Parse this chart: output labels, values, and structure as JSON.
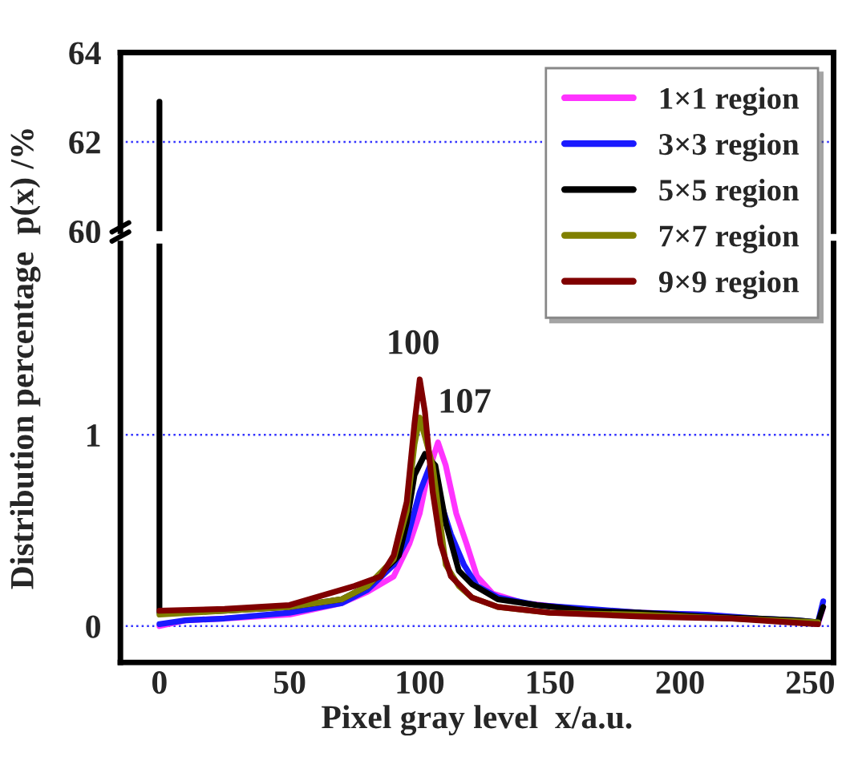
{
  "chart_data": [
    {
      "type": "line",
      "xlim": [
        -15,
        259
      ],
      "ylim": [
        60,
        64
      ],
      "yticks": [
        60,
        62,
        64
      ],
      "tick_labels": "y",
      "ref_lines": [
        {
          "axis": "y",
          "value": 62,
          "color": "#3333ff",
          "line_style": "dotted"
        }
      ],
      "series": [
        {
          "color": "#000000",
          "x": [
            0,
            0
          ],
          "values": [
            62.9,
            60
          ]
        }
      ]
    },
    {
      "type": "line",
      "xlabel": "Pixel gray level  x/a.u.",
      "ylabel": "Distribution percentage  p(x) /%",
      "xlim": [
        -15,
        259
      ],
      "ylim": [
        -0.19,
        2.0
      ],
      "xticks": [
        0,
        50,
        100,
        150,
        200,
        250
      ],
      "yticks": [
        0,
        1
      ],
      "ref_lines": [
        {
          "axis": "y",
          "value": 0,
          "color": "#3333ff",
          "line_style": "dotted"
        },
        {
          "axis": "y",
          "value": 1,
          "color": "#3333ff",
          "line_style": "dotted"
        }
      ],
      "legend": "top right",
      "annotations": [
        {
          "text": "100",
          "x": 100,
          "y": 1.29
        },
        {
          "text": "107",
          "x": 107,
          "y": 0.96
        }
      ],
      "series": [
        {
          "name": "1×1 region",
          "color": "#ff33ff",
          "x": [
            0,
            10,
            25,
            50,
            70,
            80,
            90,
            96,
            100,
            103,
            107,
            110,
            114,
            118,
            122,
            128,
            140,
            160,
            185,
            210,
            226,
            240,
            253,
            255
          ],
          "values": [
            0.0,
            0.03,
            0.04,
            0.06,
            0.12,
            0.18,
            0.26,
            0.43,
            0.59,
            0.79,
            0.96,
            0.84,
            0.59,
            0.43,
            0.26,
            0.17,
            0.12,
            0.09,
            0.07,
            0.06,
            0.04,
            0.03,
            0.01,
            0.1
          ]
        },
        {
          "name": "3×3 region",
          "color": "#1a1aff",
          "x": [
            0,
            10,
            25,
            50,
            70,
            80,
            90,
            95,
            100,
            104,
            108,
            112,
            117,
            122,
            130,
            145,
            165,
            185,
            210,
            230,
            245,
            253,
            255
          ],
          "values": [
            0.01,
            0.03,
            0.04,
            0.07,
            0.12,
            0.19,
            0.32,
            0.45,
            0.7,
            0.84,
            0.65,
            0.48,
            0.32,
            0.21,
            0.15,
            0.11,
            0.09,
            0.07,
            0.06,
            0.04,
            0.03,
            0.02,
            0.13
          ]
        },
        {
          "name": "5×5 region",
          "color": "#000000",
          "x": [
            0,
            0,
            1,
            25,
            50,
            70,
            80,
            90,
            92,
            95,
            98,
            102,
            106,
            110,
            115,
            120,
            130,
            145,
            165,
            185,
            210,
            230,
            245,
            253,
            255
          ],
          "values": [
            2.0,
            0.07,
            0.07,
            0.08,
            0.1,
            0.14,
            0.21,
            0.34,
            0.37,
            0.54,
            0.79,
            0.9,
            0.84,
            0.54,
            0.29,
            0.22,
            0.14,
            0.11,
            0.08,
            0.07,
            0.05,
            0.04,
            0.03,
            0.02,
            0.1
          ]
        },
        {
          "name": "7×7 region",
          "color": "#808000",
          "x": [
            0,
            25,
            50,
            70,
            80,
            90,
            95,
            98,
            100,
            105,
            110,
            115,
            120,
            130,
            150,
            185,
            220,
            253
          ],
          "values": [
            0.06,
            0.08,
            0.1,
            0.14,
            0.21,
            0.35,
            0.6,
            0.95,
            1.09,
            0.84,
            0.32,
            0.21,
            0.15,
            0.1,
            0.07,
            0.06,
            0.04,
            0.02
          ]
        },
        {
          "name": "9×9 region",
          "color": "#800000",
          "x": [
            0,
            25,
            50,
            75,
            85,
            90,
            95,
            98,
            100,
            102,
            105,
            108,
            112,
            120,
            130,
            150,
            185,
            220,
            253
          ],
          "values": [
            0.08,
            0.09,
            0.11,
            0.21,
            0.26,
            0.37,
            0.65,
            1.06,
            1.29,
            1.12,
            0.7,
            0.43,
            0.26,
            0.15,
            0.1,
            0.07,
            0.05,
            0.04,
            0.01
          ]
        }
      ]
    }
  ]
}
